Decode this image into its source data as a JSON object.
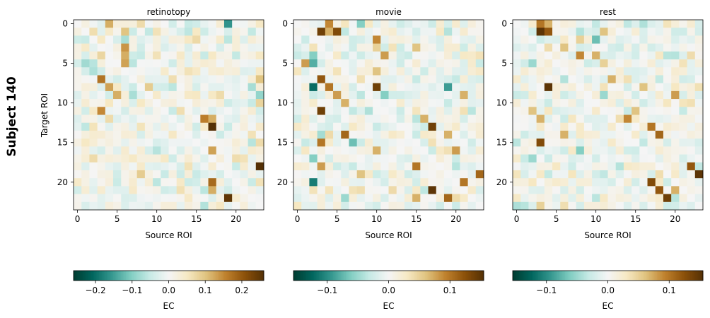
{
  "figure": {
    "row_label": "Subject 140"
  },
  "chart_data": [
    {
      "type": "heatmap",
      "title": "retinotopy",
      "xlabel": "Source ROI",
      "ylabel": "Target ROI",
      "n": 24,
      "x_ticks": [
        0,
        5,
        10,
        15,
        20
      ],
      "y_ticks": [
        0,
        5,
        10,
        15,
        20
      ],
      "colormap": "BrBG_r",
      "vmin": -0.26,
      "vmax": 0.26,
      "colorbar": {
        "label": "EC",
        "ticks": [
          -0.2,
          -0.1,
          0.0,
          0.1,
          0.2
        ],
        "tick_labels": [
          "−0.2",
          "−0.1",
          "0.0",
          "0.1",
          "0.2"
        ]
      },
      "strong_cells": [
        [
          0,
          4,
          0.12
        ],
        [
          0,
          8,
          0.07
        ],
        [
          0,
          19,
          -0.16
        ],
        [
          1,
          6,
          0.1
        ],
        [
          1,
          10,
          0.06
        ],
        [
          1,
          15,
          0.05
        ],
        [
          2,
          1,
          -0.05
        ],
        [
          2,
          3,
          0.05
        ],
        [
          2,
          19,
          -0.06
        ],
        [
          3,
          6,
          0.14
        ],
        [
          4,
          6,
          0.12
        ],
        [
          4,
          10,
          0.06
        ],
        [
          4,
          23,
          0.05
        ],
        [
          5,
          6,
          0.13
        ],
        [
          5,
          1,
          -0.08
        ],
        [
          6,
          2,
          -0.07
        ],
        [
          6,
          14,
          0.06
        ],
        [
          7,
          3,
          0.17
        ],
        [
          7,
          23,
          0.1
        ],
        [
          8,
          4,
          0.13
        ],
        [
          8,
          9,
          0.09
        ],
        [
          8,
          12,
          -0.06
        ],
        [
          9,
          5,
          0.12
        ],
        [
          9,
          23,
          -0.09
        ],
        [
          9,
          18,
          0.07
        ],
        [
          10,
          8,
          0.05
        ],
        [
          10,
          23,
          0.08
        ],
        [
          11,
          3,
          0.15
        ],
        [
          11,
          12,
          -0.05
        ],
        [
          12,
          16,
          0.16
        ],
        [
          12,
          17,
          0.12
        ],
        [
          13,
          17,
          0.26
        ],
        [
          14,
          22,
          0.06
        ],
        [
          15,
          1,
          0.05
        ],
        [
          15,
          23,
          0.07
        ],
        [
          16,
          17,
          0.13
        ],
        [
          16,
          22,
          0.04
        ],
        [
          17,
          2,
          0.07
        ],
        [
          17,
          21,
          0.06
        ],
        [
          18,
          23,
          0.26
        ],
        [
          18,
          14,
          0.06
        ],
        [
          19,
          8,
          0.09
        ],
        [
          19,
          15,
          -0.05
        ],
        [
          20,
          17,
          0.18
        ],
        [
          20,
          23,
          0.06
        ],
        [
          21,
          17,
          0.12
        ],
        [
          21,
          16,
          -0.06
        ],
        [
          22,
          19,
          0.25
        ]
      ]
    },
    {
      "type": "heatmap",
      "title": "movie",
      "xlabel": "Source ROI",
      "ylabel": "",
      "n": 24,
      "x_ticks": [
        0,
        5,
        10,
        15,
        20
      ],
      "y_ticks": [
        0,
        5,
        10,
        15,
        20
      ],
      "colormap": "BrBG_r",
      "vmin": -0.155,
      "vmax": 0.155,
      "colorbar": {
        "label": "EC",
        "ticks": [
          -0.1,
          0.0,
          0.1
        ],
        "tick_labels": [
          "−0.1",
          "0.0",
          "0.1"
        ]
      },
      "strong_cells": [
        [
          0,
          4,
          0.09
        ],
        [
          0,
          8,
          -0.06
        ],
        [
          1,
          3,
          0.14
        ],
        [
          1,
          5,
          0.13
        ],
        [
          1,
          4,
          0.07
        ],
        [
          2,
          10,
          0.09
        ],
        [
          3,
          10,
          0.05
        ],
        [
          3,
          15,
          0.06
        ],
        [
          4,
          2,
          -0.06
        ],
        [
          4,
          11,
          0.08
        ],
        [
          5,
          1,
          0.08
        ],
        [
          5,
          2,
          -0.08
        ],
        [
          6,
          10,
          0.06
        ],
        [
          7,
          3,
          0.12
        ],
        [
          8,
          2,
          -0.12
        ],
        [
          8,
          4,
          0.1
        ],
        [
          8,
          10,
          0.14
        ],
        [
          8,
          19,
          -0.09
        ],
        [
          9,
          5,
          0.08
        ],
        [
          9,
          11,
          -0.06
        ],
        [
          9,
          21,
          0.07
        ],
        [
          10,
          6,
          0.07
        ],
        [
          11,
          3,
          0.14
        ],
        [
          12,
          16,
          0.07
        ],
        [
          13,
          17,
          0.14
        ],
        [
          14,
          6,
          0.11
        ],
        [
          14,
          19,
          0.07
        ],
        [
          15,
          3,
          0.1
        ],
        [
          15,
          7,
          -0.07
        ],
        [
          16,
          10,
          0.07
        ],
        [
          16,
          20,
          0.08
        ],
        [
          17,
          2,
          -0.06
        ],
        [
          18,
          3,
          0.08
        ],
        [
          18,
          15,
          0.1
        ],
        [
          19,
          23,
          0.11
        ],
        [
          19,
          8,
          0.06
        ],
        [
          20,
          2,
          -0.11
        ],
        [
          20,
          21,
          0.1
        ],
        [
          21,
          17,
          0.15
        ],
        [
          22,
          15,
          0.07
        ],
        [
          22,
          19,
          0.11
        ],
        [
          22,
          6,
          -0.05
        ]
      ]
    },
    {
      "type": "heatmap",
      "title": "rest",
      "xlabel": "Source ROI",
      "ylabel": "",
      "n": 24,
      "x_ticks": [
        0,
        5,
        10,
        15,
        20
      ],
      "y_ticks": [
        0,
        5,
        10,
        15,
        20
      ],
      "colormap": "BrBG_r",
      "vmin": -0.155,
      "vmax": 0.155,
      "colorbar": {
        "label": "EC",
        "ticks": [
          -0.1,
          0.0,
          0.1
        ],
        "tick_labels": [
          "−0.1",
          "0.0",
          "0.1"
        ]
      },
      "strong_cells": [
        [
          0,
          3,
          0.1
        ],
        [
          0,
          4,
          0.07
        ],
        [
          1,
          3,
          0.15
        ],
        [
          1,
          4,
          0.12
        ],
        [
          1,
          11,
          0.06
        ],
        [
          2,
          10,
          -0.07
        ],
        [
          2,
          8,
          0.05
        ],
        [
          3,
          6,
          0.06
        ],
        [
          4,
          8,
          0.09
        ],
        [
          4,
          10,
          0.07
        ],
        [
          5,
          11,
          0.05
        ],
        [
          5,
          2,
          -0.05
        ],
        [
          7,
          12,
          0.07
        ],
        [
          8,
          4,
          0.15
        ],
        [
          8,
          16,
          0.06
        ],
        [
          9,
          20,
          0.08
        ],
        [
          9,
          11,
          -0.05
        ],
        [
          11,
          2,
          0.06
        ],
        [
          11,
          15,
          0.06
        ],
        [
          12,
          3,
          0.07
        ],
        [
          12,
          14,
          0.09
        ],
        [
          13,
          17,
          0.1
        ],
        [
          14,
          18,
          0.11
        ],
        [
          14,
          6,
          0.07
        ],
        [
          15,
          3,
          0.13
        ],
        [
          16,
          8,
          -0.06
        ],
        [
          17,
          2,
          -0.05
        ],
        [
          18,
          22,
          0.12
        ],
        [
          19,
          23,
          0.15
        ],
        [
          20,
          17,
          0.13
        ],
        [
          21,
          18,
          0.12
        ],
        [
          21,
          20,
          0.07
        ],
        [
          22,
          19,
          0.14
        ],
        [
          23,
          3,
          0.05
        ]
      ]
    }
  ]
}
